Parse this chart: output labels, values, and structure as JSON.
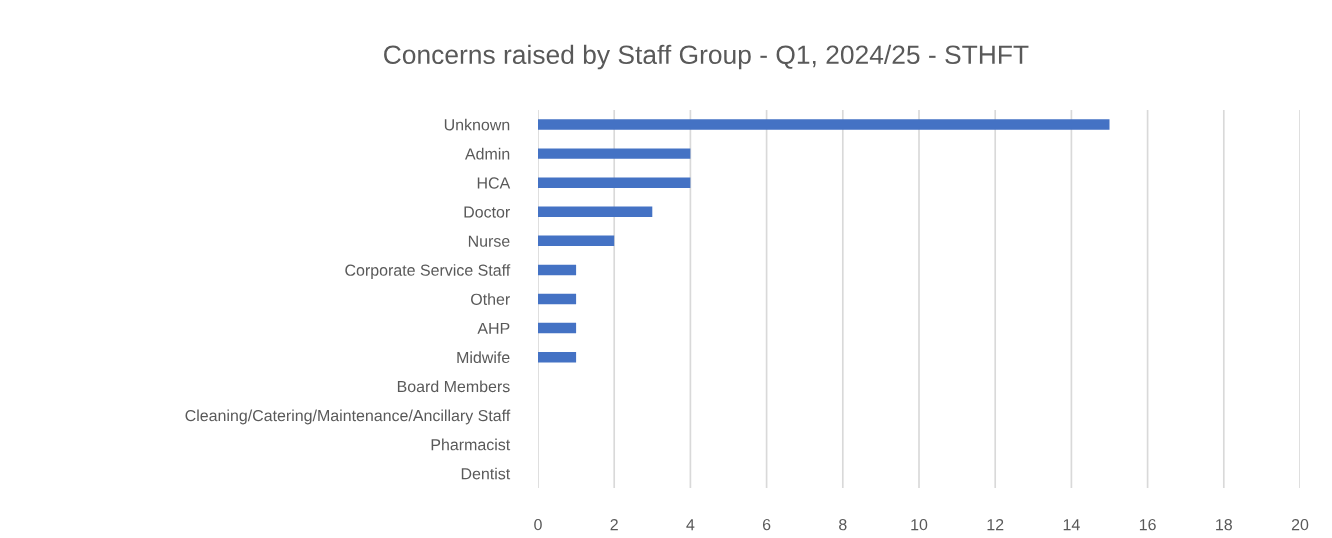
{
  "chart_data": {
    "type": "bar",
    "orientation": "horizontal",
    "title": "Concerns raised by Staff Group - Q1, 2024/25 - STHFT",
    "categories": [
      "Unknown",
      "Admin",
      "HCA",
      "Doctor",
      "Nurse",
      "Corporate Service Staff",
      "Other",
      "AHP",
      "Midwife",
      "Board Members",
      "Cleaning/Catering/Maintenance/Ancillary Staff",
      "Pharmacist",
      "Dentist"
    ],
    "values": [
      15,
      4,
      4,
      3,
      2,
      1,
      1,
      1,
      1,
      0,
      0,
      0,
      0
    ],
    "color": "#4472c4",
    "xlim": [
      0,
      20
    ],
    "xticks": [
      0,
      2,
      4,
      6,
      8,
      10,
      12,
      14,
      16,
      18,
      20
    ],
    "grid": "x",
    "legend": false
  }
}
